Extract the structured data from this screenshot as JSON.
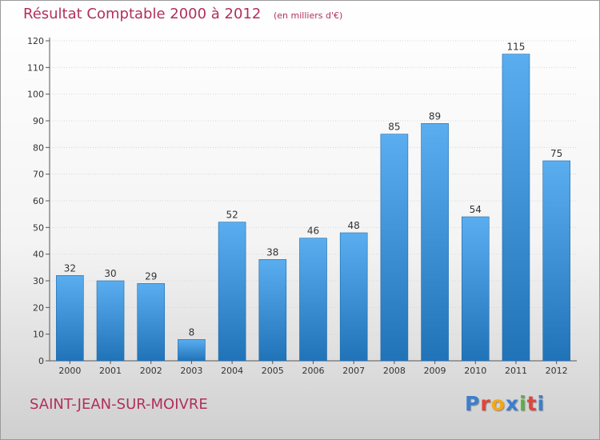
{
  "header": {
    "title": "Résultat Comptable 2000 à 2012",
    "unit": "(en milliers d'€)"
  },
  "footer": {
    "commune": "SAINT-JEAN-SUR-MOIVRE",
    "logo_text": "Proxiti",
    "logo_colors": [
      "#3a7fd0",
      "#e0453a",
      "#f2a81d",
      "#3a7fd0",
      "#5bb044",
      "#e0453a",
      "#3a7fd0"
    ]
  },
  "colors": {
    "bar_top": "#5aaef0",
    "bar_bottom": "#2173b8",
    "text": "#b0305a"
  },
  "chart_data": {
    "type": "bar",
    "categories": [
      "2000",
      "2001",
      "2002",
      "2003",
      "2004",
      "2005",
      "2006",
      "2007",
      "2008",
      "2009",
      "2010",
      "2011",
      "2012"
    ],
    "values": [
      32,
      30,
      29,
      8,
      52,
      38,
      46,
      48,
      85,
      89,
      54,
      115,
      75
    ],
    "data_labels": [
      "32",
      "30",
      "29",
      "8",
      "52",
      "38",
      "46",
      "48",
      "85",
      "89",
      "54",
      "115",
      "75"
    ],
    "yticks": [
      "0",
      "10",
      "20",
      "30",
      "40",
      "50",
      "60",
      "70",
      "80",
      "90",
      "100",
      "110",
      "120"
    ],
    "ylim": [
      0,
      120
    ],
    "title": "Résultat Comptable 2000 à 2012",
    "xlabel": "",
    "ylabel": "",
    "grid": true,
    "legend": "none"
  }
}
